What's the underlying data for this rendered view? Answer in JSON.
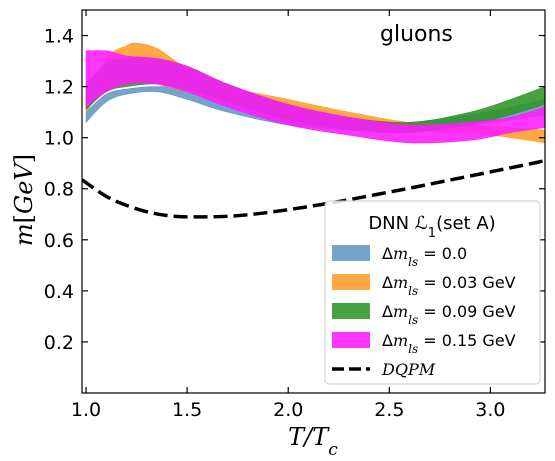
{
  "chart_data": {
    "type": "area",
    "annotation": "gluons",
    "xlabel": "T/T_c",
    "ylabel": "m[GeV]",
    "xlim": [
      0.98,
      3.27
    ],
    "ylim": [
      0.0,
      1.5
    ],
    "xticks": [
      1.0,
      1.5,
      2.0,
      2.5,
      3.0
    ],
    "xtick_labels": [
      "1.0",
      "1.5",
      "2.0",
      "2.5",
      "3.0"
    ],
    "yticks": [
      0.2,
      0.4,
      0.6,
      0.8,
      1.0,
      1.2,
      1.4
    ],
    "ytick_labels": [
      "0.2",
      "0.4",
      "0.6",
      "0.8",
      "1.0",
      "1.2",
      "1.4"
    ],
    "legend": {
      "title": "DNN ℒ1(set A)",
      "placement": "lower-right"
    },
    "series": [
      {
        "name": "Δm_ls = 0.0",
        "label_parts": [
          "Δ",
          "m",
          "ls",
          " = 0.0"
        ],
        "kind": "band",
        "color": "#6495c3",
        "x": [
          1.0,
          1.1,
          1.2,
          1.35,
          1.5,
          1.7,
          2.0,
          2.3,
          2.6,
          2.9,
          3.1,
          3.27
        ],
        "lower": [
          1.06,
          1.14,
          1.17,
          1.18,
          1.15,
          1.1,
          1.05,
          1.03,
          1.03,
          1.05,
          1.07,
          1.09
        ],
        "upper": [
          1.1,
          1.17,
          1.19,
          1.2,
          1.19,
          1.15,
          1.09,
          1.06,
          1.06,
          1.09,
          1.12,
          1.15
        ]
      },
      {
        "name": "Δm_ls = 0.03 GeV",
        "label_parts": [
          "Δ",
          "m",
          "ls",
          " = 0.03 GeV"
        ],
        "kind": "band",
        "color": "#ff9c2a",
        "x": [
          1.0,
          1.1,
          1.2,
          1.25,
          1.35,
          1.5,
          1.7,
          2.0,
          2.3,
          2.6,
          2.9,
          3.1,
          3.27
        ],
        "lower": [
          1.1,
          1.2,
          1.22,
          1.22,
          1.21,
          1.18,
          1.14,
          1.09,
          1.05,
          1.03,
          1.02,
          1.0,
          0.98
        ],
        "upper": [
          1.14,
          1.31,
          1.36,
          1.37,
          1.35,
          1.27,
          1.2,
          1.15,
          1.1,
          1.06,
          1.05,
          1.04,
          1.03
        ]
      },
      {
        "name": "Δm_ls = 0.09 GeV",
        "label_parts": [
          "Δ",
          "m",
          "ls",
          " = 0.09 GeV"
        ],
        "kind": "band",
        "color": "#2f9424",
        "x": [
          1.0,
          1.1,
          1.2,
          1.35,
          1.5,
          1.7,
          2.0,
          2.3,
          2.6,
          2.9,
          3.1,
          3.27
        ],
        "lower": [
          1.11,
          1.18,
          1.2,
          1.21,
          1.19,
          1.14,
          1.07,
          1.03,
          1.02,
          1.05,
          1.09,
          1.13
        ],
        "upper": [
          1.21,
          1.29,
          1.31,
          1.31,
          1.28,
          1.21,
          1.13,
          1.08,
          1.06,
          1.1,
          1.15,
          1.2
        ]
      },
      {
        "name": "Δm_ls = 0.15 GeV",
        "label_parts": [
          "Δ",
          "m",
          "ls",
          " = 0.15 GeV"
        ],
        "kind": "band",
        "color": "#ff1aff",
        "x": [
          1.0,
          1.1,
          1.2,
          1.35,
          1.5,
          1.7,
          2.0,
          2.3,
          2.6,
          2.9,
          3.1,
          3.27
        ],
        "lower": [
          1.12,
          1.18,
          1.21,
          1.21,
          1.18,
          1.12,
          1.05,
          1.01,
          0.98,
          0.99,
          1.02,
          1.04
        ],
        "upper": [
          1.34,
          1.34,
          1.32,
          1.31,
          1.28,
          1.21,
          1.13,
          1.08,
          1.05,
          1.06,
          1.08,
          1.12
        ]
      },
      {
        "name": "DQPM",
        "label_parts": [
          "",
          "DQPM",
          "",
          ""
        ],
        "kind": "line",
        "style": "dashed",
        "color": "#000000",
        "x": [
          0.98,
          1.1,
          1.2,
          1.3,
          1.4,
          1.5,
          1.6,
          1.7,
          1.8,
          1.9,
          2.0,
          2.1,
          2.2,
          2.3,
          2.4,
          2.5,
          2.6,
          2.7,
          2.8,
          2.9,
          3.0,
          3.1,
          3.2,
          3.27
        ],
        "y": [
          0.835,
          0.77,
          0.735,
          0.71,
          0.695,
          0.69,
          0.69,
          0.692,
          0.698,
          0.707,
          0.718,
          0.73,
          0.743,
          0.757,
          0.772,
          0.787,
          0.802,
          0.818,
          0.834,
          0.85,
          0.866,
          0.882,
          0.898,
          0.91
        ]
      }
    ]
  }
}
